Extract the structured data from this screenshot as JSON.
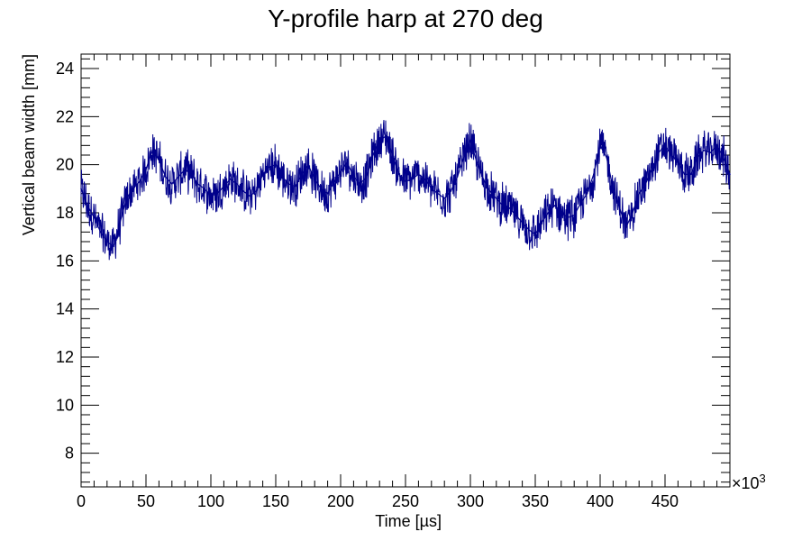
{
  "chart_data": {
    "type": "line",
    "title": "Y-profile harp at 270 deg",
    "xlabel": "Time [µs]",
    "ylabel": "Vertical beam width [mm]",
    "x_multiplier_label": "×10",
    "x_multiplier_exponent": "3",
    "xlim": [
      0,
      500
    ],
    "ylim": [
      6.6,
      24.6
    ],
    "x_ticks": [
      "0",
      "50",
      "100",
      "150",
      "200",
      "250",
      "300",
      "350",
      "400",
      "450"
    ],
    "y_ticks": [
      "8",
      "10",
      "12",
      "14",
      "16",
      "18",
      "20",
      "22",
      "24"
    ],
    "grid": false,
    "series": [
      {
        "color": "#00008b",
        "x": [
          0,
          5,
          10,
          15,
          20,
          25,
          30,
          35,
          40,
          45,
          50,
          55,
          60,
          65,
          70,
          75,
          80,
          85,
          90,
          95,
          100,
          105,
          110,
          115,
          120,
          125,
          130,
          135,
          140,
          145,
          150,
          155,
          160,
          165,
          170,
          175,
          180,
          185,
          190,
          195,
          200,
          205,
          210,
          215,
          220,
          225,
          230,
          235,
          240,
          245,
          250,
          255,
          260,
          265,
          270,
          275,
          280,
          285,
          290,
          295,
          300,
          305,
          310,
          315,
          320,
          325,
          330,
          335,
          340,
          345,
          350,
          355,
          360,
          365,
          370,
          375,
          380,
          385,
          390,
          395,
          400,
          405,
          410,
          415,
          420,
          425,
          430,
          435,
          440,
          445,
          450,
          455,
          460,
          465,
          470,
          475,
          480,
          485,
          490,
          495,
          500
        ],
        "y": [
          19.0,
          18.3,
          17.8,
          17.2,
          16.8,
          16.6,
          17.6,
          18.6,
          19.0,
          19.3,
          19.8,
          20.6,
          20.2,
          19.5,
          19.2,
          19.5,
          19.8,
          19.6,
          19.2,
          19.0,
          18.7,
          18.8,
          19.1,
          19.4,
          19.2,
          18.9,
          18.7,
          18.9,
          19.6,
          19.9,
          20.0,
          19.5,
          19.2,
          19.1,
          19.6,
          20.0,
          19.4,
          19.0,
          18.8,
          19.3,
          19.7,
          20.1,
          19.5,
          19.2,
          19.5,
          20.4,
          21.0,
          21.2,
          20.4,
          19.6,
          19.3,
          19.4,
          19.6,
          19.4,
          19.0,
          18.8,
          18.6,
          18.9,
          19.5,
          20.3,
          21.0,
          20.1,
          19.4,
          18.9,
          18.6,
          18.3,
          18.2,
          17.9,
          17.6,
          17.3,
          17.1,
          17.6,
          18.0,
          18.3,
          18.0,
          17.8,
          17.9,
          18.4,
          18.8,
          19.6,
          20.8,
          20.3,
          19.0,
          18.2,
          17.4,
          18.0,
          18.8,
          19.2,
          19.8,
          20.5,
          20.8,
          20.4,
          20.1,
          19.6,
          19.6,
          20.3,
          20.6,
          20.5,
          20.8,
          20.3,
          19.6
        ]
      }
    ]
  }
}
